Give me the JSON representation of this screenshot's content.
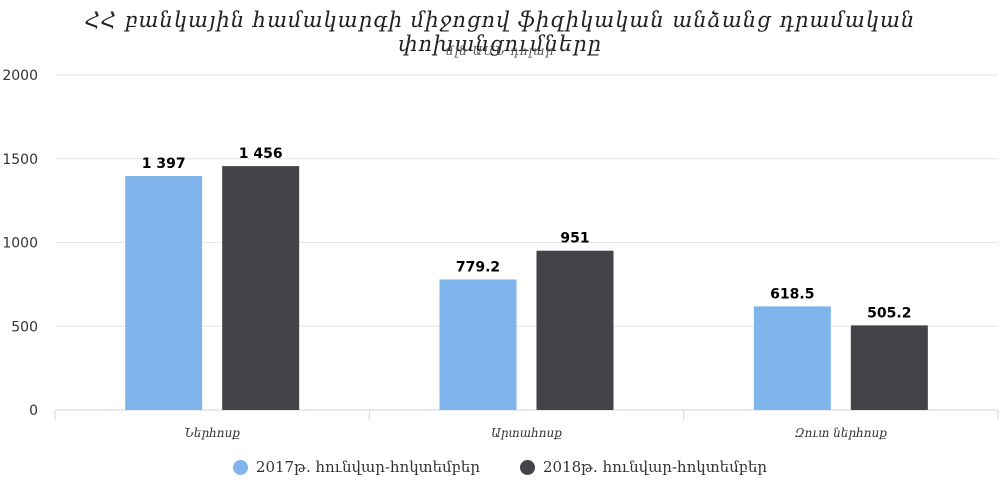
{
  "colors": {
    "series_2017": "#7fb5ea",
    "series_2018": "#434348",
    "grid": "#e6e6e6",
    "axis": "#ccd6eb"
  },
  "chart_data": {
    "type": "bar",
    "title": "ՀՀ բանկային համակարգի միջոցով ֆիզիկական անձանց դրամական փոխանցումները",
    "subtitle": "մլն ԱՄՆ դոլար",
    "categories": [
      "Ներհոսք",
      "Արտահոսք",
      "Զուտ ներհոսք"
    ],
    "series": [
      {
        "name": "2017թ. հունվար-հոկտեմբեր",
        "values": [
          1397,
          779.2,
          618.5
        ],
        "labels": [
          "1 397",
          "779.2",
          "618.5"
        ],
        "color": "#7fb5ea"
      },
      {
        "name": "2018թ. հունվար-հոկտեմբեր",
        "values": [
          1456,
          951,
          505.2
        ],
        "labels": [
          "1 456",
          "951",
          "505.2"
        ],
        "color": "#434348"
      }
    ],
    "ylim": [
      0,
      2000
    ],
    "yticks": [
      "0",
      "500",
      "1000",
      "1500",
      "2000"
    ],
    "grid": true,
    "legend": "bottom-center"
  }
}
